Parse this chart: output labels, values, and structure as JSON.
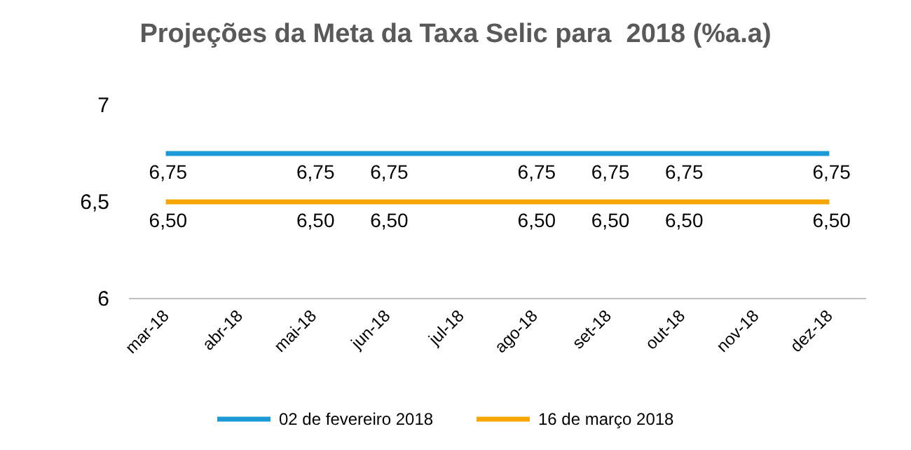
{
  "chart_data": {
    "type": "line",
    "title": "Projeções da Meta da Taxa Selic para  2018 (%a.a)",
    "categories": [
      "mar-18",
      "abr-18",
      "mai-18",
      "jun-18",
      "jul-18",
      "ago-18",
      "set-18",
      "out-18",
      "nov-18",
      "dez-18"
    ],
    "series": [
      {
        "name": "02 de fevereiro 2018",
        "color": "#1c9ad6",
        "values": [
          6.75,
          6.75,
          6.75,
          6.75,
          6.75,
          6.75,
          6.75,
          6.75,
          6.75,
          6.75
        ],
        "value_labels": [
          "6,75",
          null,
          "6,75",
          "6,75",
          null,
          "6,75",
          "6,75",
          "6,75",
          null,
          "6,75"
        ]
      },
      {
        "name": "16 de março 2018",
        "color": "#f7a600",
        "values": [
          6.5,
          6.5,
          6.5,
          6.5,
          6.5,
          6.5,
          6.5,
          6.5,
          6.5,
          6.5
        ],
        "value_labels": [
          "6,50",
          null,
          "6,50",
          "6,50",
          null,
          "6,50",
          "6,50",
          "6,50",
          null,
          "6,50"
        ]
      }
    ],
    "ylim": [
      6,
      7
    ],
    "yticks": [
      {
        "value": 6,
        "label": "6"
      },
      {
        "value": 6.5,
        "label": "6,5"
      },
      {
        "value": 7,
        "label": "7"
      }
    ],
    "grid": false,
    "legend": "bottom",
    "marker": "none",
    "line_style": "solid"
  }
}
